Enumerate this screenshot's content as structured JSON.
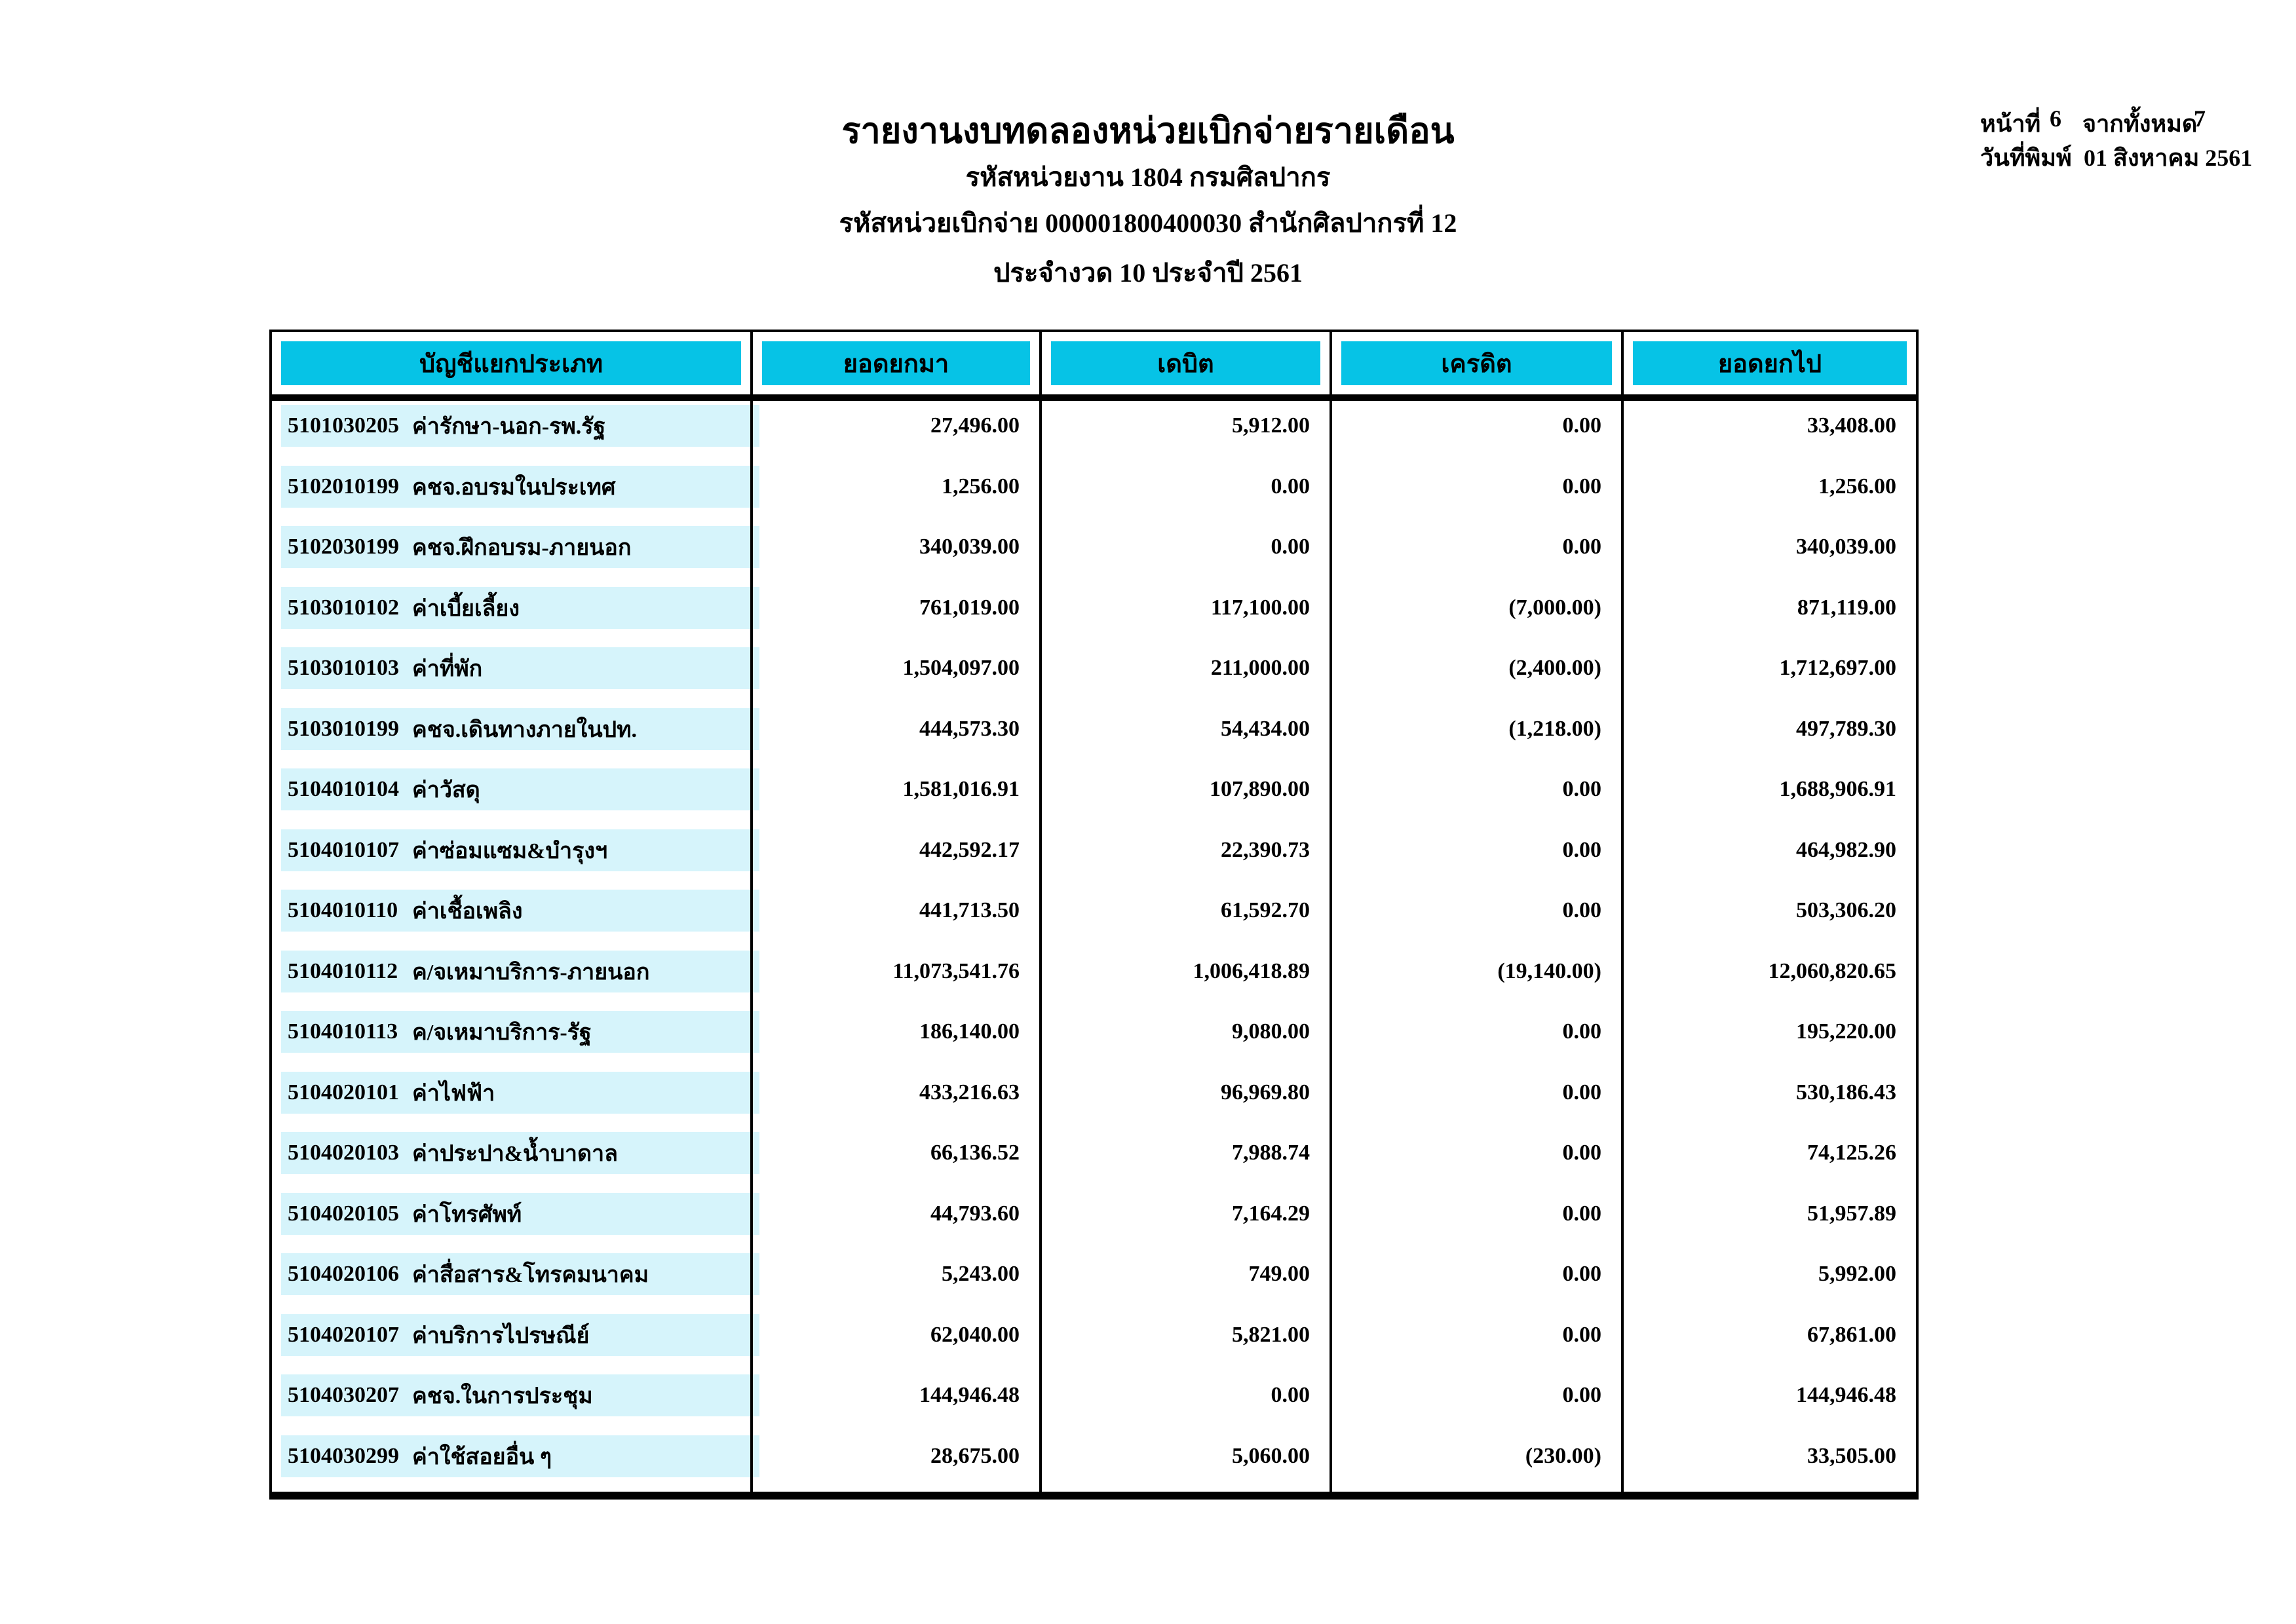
{
  "header": {
    "title": "รายงานงบทดลองหน่วยเบิกจ่ายรายเดือน",
    "agency_line": "รหัสหน่วยงาน 1804 กรมศิลปากร",
    "unit_line": "รหัสหน่วยเบิกจ่าย 000001800400030 สำนักศิลปากรที่ 12",
    "period_line": "ประจำงวด 10 ประจำปี 2561",
    "page_label": "หน้าที่",
    "page_number": "6",
    "total_label": "จากทั้งหมด",
    "total_pages": "7",
    "print_date_label": "วันที่พิมพ์",
    "print_date": "01 สิงหาคม 2561"
  },
  "colors": {
    "header_bg": "#06C3E6",
    "row_bg": "#D6F4FB"
  },
  "table": {
    "columns": [
      "บัญชีแยกประเภท",
      "ยอดยกมา",
      "เดบิต",
      "เครดิต",
      "ยอดยกไป"
    ],
    "rows": [
      {
        "code": "5101030205",
        "name": "ค่ารักษา-นอก-รพ.รัฐ",
        "opening": "27,496.00",
        "debit": "5,912.00",
        "credit": "0.00",
        "closing": "33,408.00"
      },
      {
        "code": "5102010199",
        "name": "คชจ.อบรมในประเทศ",
        "opening": "1,256.00",
        "debit": "0.00",
        "credit": "0.00",
        "closing": "1,256.00"
      },
      {
        "code": "5102030199",
        "name": "คชจ.ฝึกอบรม-ภายนอก",
        "opening": "340,039.00",
        "debit": "0.00",
        "credit": "0.00",
        "closing": "340,039.00"
      },
      {
        "code": "5103010102",
        "name": "ค่าเบี้ยเลี้ยง",
        "opening": "761,019.00",
        "debit": "117,100.00",
        "credit": "(7,000.00)",
        "closing": "871,119.00"
      },
      {
        "code": "5103010103",
        "name": "ค่าที่พัก",
        "opening": "1,504,097.00",
        "debit": "211,000.00",
        "credit": "(2,400.00)",
        "closing": "1,712,697.00"
      },
      {
        "code": "5103010199",
        "name": "คชจ.เดินทางภายในปท.",
        "opening": "444,573.30",
        "debit": "54,434.00",
        "credit": "(1,218.00)",
        "closing": "497,789.30"
      },
      {
        "code": "5104010104",
        "name": "ค่าวัสดุ",
        "opening": "1,581,016.91",
        "debit": "107,890.00",
        "credit": "0.00",
        "closing": "1,688,906.91"
      },
      {
        "code": "5104010107",
        "name": "ค่าซ่อมแซม&บำรุงฯ",
        "opening": "442,592.17",
        "debit": "22,390.73",
        "credit": "0.00",
        "closing": "464,982.90"
      },
      {
        "code": "5104010110",
        "name": "ค่าเชื้อเพลิง",
        "opening": "441,713.50",
        "debit": "61,592.70",
        "credit": "0.00",
        "closing": "503,306.20"
      },
      {
        "code": "5104010112",
        "name": "ค/จเหมาบริการ-ภายนอก",
        "opening": "11,073,541.76",
        "debit": "1,006,418.89",
        "credit": "(19,140.00)",
        "closing": "12,060,820.65"
      },
      {
        "code": "5104010113",
        "name": "ค/จเหมาบริการ-รัฐ",
        "opening": "186,140.00",
        "debit": "9,080.00",
        "credit": "0.00",
        "closing": "195,220.00"
      },
      {
        "code": "5104020101",
        "name": "ค่าไฟฟ้า",
        "opening": "433,216.63",
        "debit": "96,969.80",
        "credit": "0.00",
        "closing": "530,186.43"
      },
      {
        "code": "5104020103",
        "name": "ค่าประปา&น้ำบาดาล",
        "opening": "66,136.52",
        "debit": "7,988.74",
        "credit": "0.00",
        "closing": "74,125.26"
      },
      {
        "code": "5104020105",
        "name": "ค่าโทรศัพท์",
        "opening": "44,793.60",
        "debit": "7,164.29",
        "credit": "0.00",
        "closing": "51,957.89"
      },
      {
        "code": "5104020106",
        "name": "ค่าสื่อสาร&โทรคมนาคม",
        "opening": "5,243.00",
        "debit": "749.00",
        "credit": "0.00",
        "closing": "5,992.00"
      },
      {
        "code": "5104020107",
        "name": "ค่าบริการไปรษณีย์",
        "opening": "62,040.00",
        "debit": "5,821.00",
        "credit": "0.00",
        "closing": "67,861.00"
      },
      {
        "code": "5104030207",
        "name": "คชจ.ในการประชุม",
        "opening": "144,946.48",
        "debit": "0.00",
        "credit": "0.00",
        "closing": "144,946.48"
      },
      {
        "code": "5104030299",
        "name": "ค่าใช้สอยอื่น ๆ",
        "opening": "28,675.00",
        "debit": "5,060.00",
        "credit": "(230.00)",
        "closing": "33,505.00"
      }
    ]
  }
}
